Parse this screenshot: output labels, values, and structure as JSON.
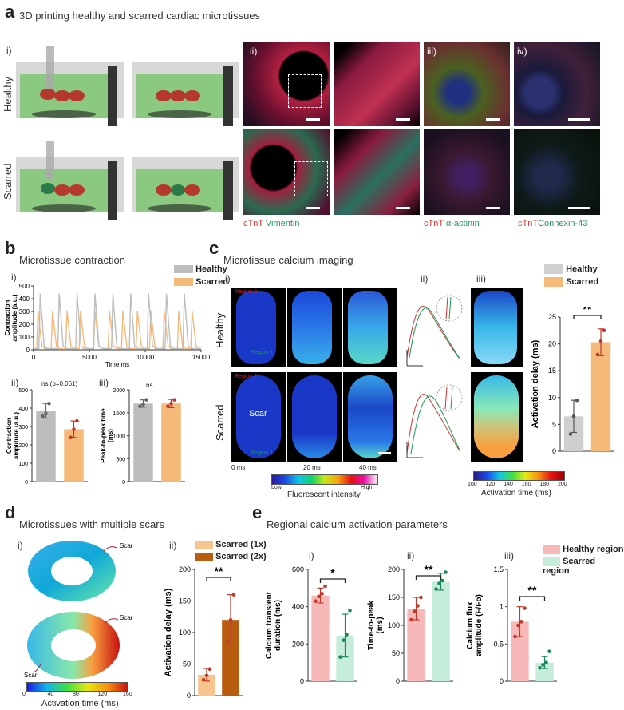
{
  "panel_a": {
    "letter": "a",
    "title": "3D printing healthy and scarred cardiac microtissues",
    "sub_i": "i)",
    "sub_ii": "ii)",
    "sub_iii": "iii)",
    "sub_iv": "iv)",
    "row_healthy": "Healthy",
    "row_scarred": "Scarred",
    "stain1_red": "cTnT",
    "stain1_green": "Vimentin",
    "stain2_red": "cTnT",
    "stain2_green": "α-actinin",
    "stain3_red": "cTnT",
    "stain3_green": "Connexin-43"
  },
  "panel_b": {
    "letter": "b",
    "title": "Microtissue contraction",
    "sub_i": "i)",
    "sub_ii": "ii)",
    "sub_iii": "iii)",
    "legend_healthy": "Healthy",
    "legend_scarred": "Scarred",
    "ns_label": "ns (p=0.061)",
    "ns2_label": "ns"
  },
  "panel_c": {
    "letter": "c",
    "title": "Microtissue calcium imaging",
    "sub_i": "i)",
    "sub_ii": "ii)",
    "sub_iii": "iii)",
    "row_healthy": "Healthy",
    "row_scarred": "Scarred",
    "region2": "Region 2",
    "region1": "Region 1",
    "scar": "Scar",
    "t0": "0 ms",
    "t1": "20 ms",
    "t2": "40 ms",
    "cb_low": "Low",
    "cb_high": "High",
    "cb_label": "Fluorescent intensity",
    "act_ticks": [
      "100",
      "120",
      "140",
      "160",
      "180",
      "200"
    ],
    "act_label": "Activation time (ms)",
    "legend_healthy": "Healthy",
    "legend_scarred": "Scarred",
    "sig": "**"
  },
  "panel_d": {
    "letter": "d",
    "title": "Microtissues with multiple scars",
    "sub_i": "i)",
    "sub_ii": "ii)",
    "scar": "Scar",
    "cb_ticks": [
      "0",
      "40",
      "80",
      "120",
      "160"
    ],
    "cb_label": "Activation time (ms)",
    "legend_1x": "Scarred (1x)",
    "legend_2x": "Scarred (2x)",
    "sig": "**"
  },
  "panel_e": {
    "letter": "e",
    "title": "Regional calcium activation parameters",
    "sub_i": "i)",
    "sub_ii": "ii)",
    "sub_iii": "iii)",
    "legend_healthy": "Healthy region",
    "legend_scarred": "Scarred region",
    "sig1": "*",
    "sig2": "**",
    "sig3": "**"
  },
  "colors": {
    "healthy": "#bdbdbd",
    "scarred": "#f5b97a",
    "scar1x": "#f6c48c",
    "scar2x": "#b85c10",
    "hregion": "#f7b8b8",
    "sregion": "#c6ecdc",
    "red_dot": "#c0392b",
    "green_dot": "#1e8a5a"
  },
  "chart_data": [
    {
      "id": "b_i",
      "type": "line",
      "xlabel": "Time ms",
      "ylabel": "Contraction amplitude (a.u.)",
      "xlim": [
        0,
        15000
      ],
      "ylim": [
        0,
        500
      ],
      "xticks": [
        0,
        5000,
        10000,
        15000
      ],
      "yticks": [
        0,
        100,
        200,
        300,
        400,
        500
      ],
      "series": [
        {
          "name": "Healthy",
          "peaks_x": [
            600,
            2300,
            3900,
            5500,
            7100,
            8700,
            10300,
            11900,
            13500
          ],
          "peak_y": 440,
          "baseline": 10
        },
        {
          "name": "Scarred",
          "peaks_x": [
            400,
            1700,
            3000,
            4200,
            5500,
            6800,
            8000,
            9300,
            10500,
            11700,
            13000,
            14200
          ],
          "peak_y": 300,
          "baseline": 10
        }
      ]
    },
    {
      "id": "b_ii",
      "type": "bar",
      "ylabel": "Contraction amplitude (a.u.)",
      "ylim": [
        0,
        500
      ],
      "yticks": [
        0,
        100,
        200,
        300,
        400,
        500
      ],
      "categories": [
        "Healthy",
        "Scarred"
      ],
      "values": [
        385,
        285
      ],
      "err": [
        40,
        45
      ],
      "points": [
        [
          355,
          370,
          425
        ],
        [
          240,
          285,
          330
        ]
      ]
    },
    {
      "id": "b_iii",
      "type": "bar",
      "ylabel": "Peak-to-peak time (ms)",
      "ylim": [
        0,
        2000
      ],
      "yticks": [
        0,
        500,
        1000,
        1500,
        2000
      ],
      "categories": [
        "Healthy",
        "Scarred"
      ],
      "values": [
        1700,
        1700
      ],
      "err": [
        80,
        90
      ],
      "points": [
        [
          1640,
          1680,
          1780
        ],
        [
          1640,
          1700,
          1780
        ]
      ]
    },
    {
      "id": "c_iii",
      "type": "bar",
      "ylabel": "Activation delay (ms)",
      "ylim": [
        0,
        25
      ],
      "yticks": [
        0,
        5,
        10,
        15,
        20,
        25
      ],
      "categories": [
        "Healthy",
        "Scarred"
      ],
      "values": [
        6.5,
        20.3
      ],
      "err": [
        3,
        2.5
      ],
      "points": [
        [
          3.2,
          6.5,
          9.5
        ],
        [
          18,
          20.5,
          22.5
        ]
      ]
    },
    {
      "id": "d_ii",
      "type": "bar",
      "ylabel": "Activation delay (ms)",
      "ylim": [
        0,
        200
      ],
      "yticks": [
        0,
        50,
        100,
        150,
        200
      ],
      "categories": [
        "Scarred (1x)",
        "Scarred (2x)"
      ],
      "values": [
        33,
        120
      ],
      "err": [
        10,
        40
      ],
      "points": [
        [
          25,
          32,
          42
        ],
        [
          85,
          120,
          160
        ]
      ]
    },
    {
      "id": "e_i",
      "type": "bar",
      "ylabel": "Calcium transient duration (ms)",
      "ylim": [
        0,
        600
      ],
      "yticks": [
        0,
        200,
        400,
        600
      ],
      "categories": [
        "Healthy region",
        "Scarred region"
      ],
      "values": [
        460,
        245
      ],
      "err": [
        40,
        115
      ],
      "points": [
        [
          430,
          455,
          470,
          510
        ],
        [
          130,
          220,
          250,
          380
        ]
      ]
    },
    {
      "id": "e_ii",
      "type": "bar",
      "ylabel": "Time-to-peak (ms)",
      "ylim": [
        0,
        200
      ],
      "yticks": [
        0,
        50,
        100,
        150,
        200
      ],
      "categories": [
        "Healthy region",
        "Scarred region"
      ],
      "values": [
        130,
        178
      ],
      "err": [
        20,
        15
      ],
      "points": [
        [
          110,
          125,
          135,
          150
        ],
        [
          165,
          175,
          180,
          195
        ]
      ]
    },
    {
      "id": "e_iii",
      "type": "bar",
      "ylabel": "Calcium flux amplitude (F/Fo)",
      "ylim": [
        0,
        1.5
      ],
      "yticks": [
        0,
        0.5,
        1.0,
        1.5
      ],
      "categories": [
        "Healthy region",
        "Scarred region"
      ],
      "values": [
        0.8,
        0.25
      ],
      "err": [
        0.2,
        0.08
      ],
      "points": [
        [
          0.6,
          0.75,
          0.8,
          0.98
        ],
        [
          0.18,
          0.22,
          0.25,
          0.4
        ]
      ]
    }
  ]
}
